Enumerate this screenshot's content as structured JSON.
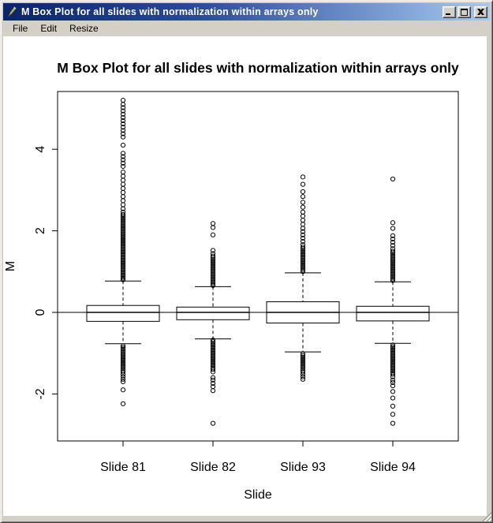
{
  "window": {
    "title": "M Box Plot for all slides with normalization within arrays only"
  },
  "menu": {
    "items": [
      "File",
      "Edit",
      "Resize"
    ]
  },
  "colors": {
    "titlebar_left": "#0a246a",
    "titlebar_right": "#a6caf0",
    "chrome": "#d4d0c8",
    "plot_fg": "#000000",
    "plot_bg": "#ffffff"
  },
  "chart_data": {
    "type": "boxplot",
    "title": "M Box Plot for all slides with normalization within arrays only",
    "xlabel": "Slide",
    "ylabel": "M",
    "ylim": [
      -3.15,
      5.45
    ],
    "yticks": [
      -2,
      0,
      2,
      4
    ],
    "reference_line_y": 0,
    "grid": false,
    "categories": [
      "Slide 81",
      "Slide 82",
      "Slide 93",
      "Slide 94"
    ],
    "series": [
      {
        "name": "Slide 81",
        "whisker_low": -0.77,
        "q1": -0.22,
        "median": 0.0,
        "q3": 0.17,
        "whisker_high": 0.77,
        "outliers_high": [
          0.8,
          0.84,
          0.88,
          0.92,
          0.96,
          1.0,
          1.04,
          1.08,
          1.12,
          1.16,
          1.2,
          1.24,
          1.28,
          1.32,
          1.36,
          1.4,
          1.44,
          1.48,
          1.52,
          1.56,
          1.6,
          1.64,
          1.68,
          1.72,
          1.76,
          1.8,
          1.84,
          1.88,
          1.92,
          1.96,
          2.0,
          2.04,
          2.08,
          2.12,
          2.16,
          2.2,
          2.24,
          2.28,
          2.32,
          2.36,
          2.4,
          2.46,
          2.54,
          2.64,
          2.74,
          2.84,
          2.94,
          3.04,
          3.14,
          3.24,
          3.34,
          3.44,
          3.58,
          3.66,
          3.74,
          3.82,
          3.9,
          4.1,
          4.3,
          4.38,
          4.46,
          4.54,
          4.62,
          4.7,
          4.78,
          4.86,
          4.94,
          5.02,
          5.1,
          5.2
        ],
        "outliers_low": [
          -0.82,
          -0.86,
          -0.9,
          -0.94,
          -0.98,
          -1.02,
          -1.06,
          -1.1,
          -1.14,
          -1.18,
          -1.22,
          -1.26,
          -1.3,
          -1.34,
          -1.38,
          -1.42,
          -1.46,
          -1.52,
          -1.58,
          -1.64,
          -1.7,
          -1.9,
          -2.24
        ]
      },
      {
        "name": "Slide 82",
        "whisker_low": -0.65,
        "q1": -0.18,
        "median": 0.0,
        "q3": 0.13,
        "whisker_high": 0.63,
        "outliers_high": [
          0.66,
          0.7,
          0.74,
          0.78,
          0.82,
          0.86,
          0.9,
          0.94,
          0.98,
          1.02,
          1.06,
          1.1,
          1.14,
          1.18,
          1.22,
          1.26,
          1.3,
          1.34,
          1.38,
          1.44,
          1.52,
          1.9,
          2.08,
          2.18
        ],
        "outliers_low": [
          -0.68,
          -0.72,
          -0.76,
          -0.8,
          -0.84,
          -0.88,
          -0.92,
          -0.96,
          -1.0,
          -1.04,
          -1.08,
          -1.12,
          -1.16,
          -1.2,
          -1.24,
          -1.28,
          -1.32,
          -1.36,
          -1.4,
          -1.46,
          -1.6,
          -1.66,
          -1.74,
          -1.82,
          -1.92,
          -2.72
        ]
      },
      {
        "name": "Slide 93",
        "whisker_low": -0.97,
        "q1": -0.26,
        "median": 0.0,
        "q3": 0.26,
        "whisker_high": 0.97,
        "outliers_high": [
          1.0,
          1.04,
          1.08,
          1.12,
          1.16,
          1.2,
          1.24,
          1.28,
          1.32,
          1.36,
          1.4,
          1.44,
          1.48,
          1.52,
          1.56,
          1.6,
          1.66,
          1.74,
          1.82,
          1.9,
          1.98,
          2.06,
          2.16,
          2.26,
          2.36,
          2.46,
          2.58,
          2.7,
          2.84,
          2.96,
          3.14,
          3.32
        ],
        "outliers_low": [
          -1.02,
          -1.06,
          -1.1,
          -1.14,
          -1.18,
          -1.22,
          -1.26,
          -1.3,
          -1.34,
          -1.38,
          -1.42,
          -1.46,
          -1.52,
          -1.58,
          -1.64
        ]
      },
      {
        "name": "Slide 94",
        "whisker_low": -0.76,
        "q1": -0.21,
        "median": 0.0,
        "q3": 0.15,
        "whisker_high": 0.75,
        "outliers_high": [
          0.78,
          0.82,
          0.86,
          0.9,
          0.94,
          0.98,
          1.02,
          1.06,
          1.1,
          1.14,
          1.18,
          1.22,
          1.26,
          1.3,
          1.34,
          1.38,
          1.42,
          1.46,
          1.5,
          1.56,
          1.64,
          1.72,
          1.8,
          1.88,
          2.06,
          2.2,
          3.27
        ],
        "outliers_low": [
          -0.8,
          -0.84,
          -0.88,
          -0.92,
          -0.96,
          -1.0,
          -1.04,
          -1.08,
          -1.12,
          -1.16,
          -1.2,
          -1.24,
          -1.28,
          -1.32,
          -1.36,
          -1.4,
          -1.44,
          -1.48,
          -1.52,
          -1.58,
          -1.66,
          -1.72,
          -1.8,
          -1.94,
          -2.1,
          -2.3,
          -2.5,
          -2.72
        ]
      }
    ]
  }
}
